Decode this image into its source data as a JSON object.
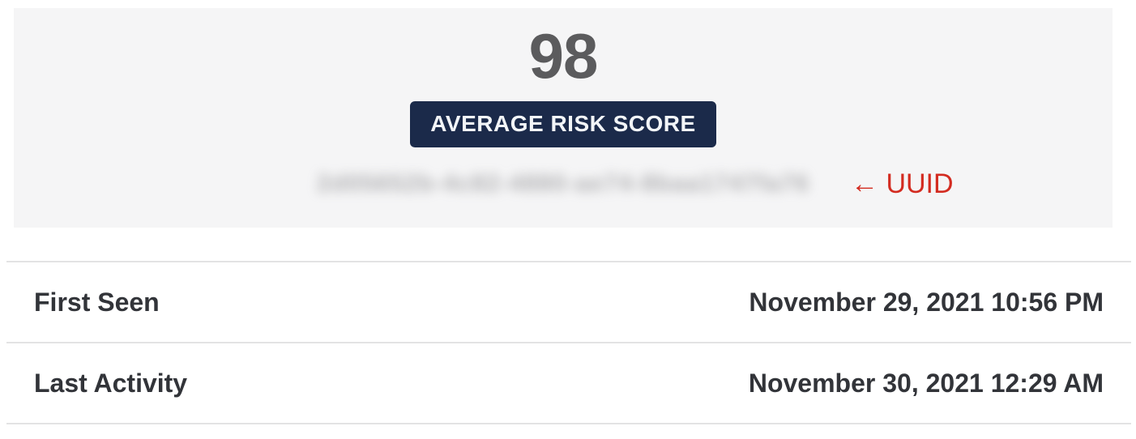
{
  "colors": {
    "panel_background": "#f5f5f6",
    "badge_background": "#1b2a4a",
    "badge_text": "#f2f5f8",
    "score_text": "#5b5b5d",
    "annotation_red": "#d32b20",
    "row_text": "#323439",
    "divider": "#e3e3e4"
  },
  "score": {
    "value": "98",
    "badge_label": "AVERAGE RISK SCORE"
  },
  "uuid": {
    "blurred_placeholder": "2d05652b-4c82-4880-ae74-8baa1747fa76",
    "annotation": "← UUID"
  },
  "details": {
    "rows": [
      {
        "label": "First Seen",
        "value": "November 29, 2021 10:56 PM"
      },
      {
        "label": "Last Activity",
        "value": "November 30, 2021 12:29 AM"
      }
    ]
  }
}
